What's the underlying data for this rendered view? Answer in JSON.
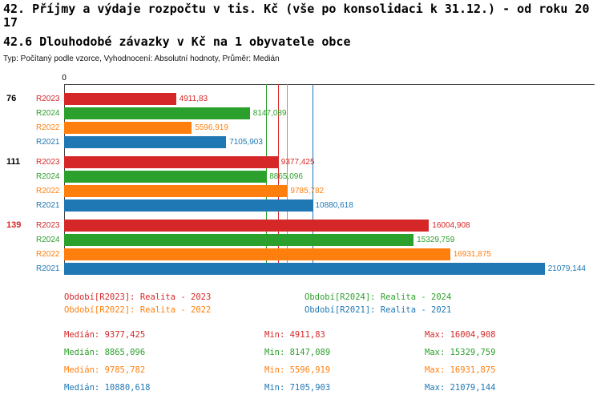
{
  "title": {
    "line1": "42. Příjmy a výdaje rozpočtu v tis. Kč (vše po konsolidaci k 31.12.) - od roku 20",
    "line2": "17",
    "subtitle": "42.6 Dlouhodobé závazky v Kč na 1 obyvatele obce",
    "meta": "Typ: Počítaný podle vzorce, Vyhodnocení: Absolutní hodnoty, Průměr: Medián"
  },
  "chart_data": {
    "type": "bar",
    "orientation": "horizontal",
    "title": "42.6 Dlouhodobé závazky v Kč na 1 obyvatele obce",
    "xlabel": "",
    "ylabel": "",
    "xlim": [
      0,
      23200
    ],
    "grid": false,
    "legend_position": "bottom",
    "axis_zero_label": "0",
    "series_colors": {
      "R2023": "#d62728",
      "R2024": "#2ca02c",
      "R2022": "#ff7f0e",
      "R2021": "#1f77b4"
    },
    "groups": [
      {
        "label": "76",
        "label_color": "#000000",
        "bars": [
          {
            "series": "R2023",
            "value": 4911.83,
            "value_label": "4911,83"
          },
          {
            "series": "R2024",
            "value": 8147.089,
            "value_label": "8147,089"
          },
          {
            "series": "R2022",
            "value": 5596.919,
            "value_label": "5596,919"
          },
          {
            "series": "R2021",
            "value": 7105.903,
            "value_label": "7105,903"
          }
        ]
      },
      {
        "label": "111",
        "label_color": "#000000",
        "bars": [
          {
            "series": "R2023",
            "value": 9377.425,
            "value_label": "9377,425"
          },
          {
            "series": "R2024",
            "value": 8865.096,
            "value_label": "8865,096"
          },
          {
            "series": "R2022",
            "value": 9785.782,
            "value_label": "9785,782"
          },
          {
            "series": "R2021",
            "value": 10880.618,
            "value_label": "10880,618"
          }
        ]
      },
      {
        "label": "139",
        "label_color": "#d62728",
        "bars": [
          {
            "series": "R2023",
            "value": 16004.908,
            "value_label": "16004,908"
          },
          {
            "series": "R2024",
            "value": 15329.759,
            "value_label": "15329,759"
          },
          {
            "series": "R2022",
            "value": 16931.875,
            "value_label": "16931,875"
          },
          {
            "series": "R2021",
            "value": 21079.144,
            "value_label": "21079,144"
          }
        ]
      }
    ],
    "median_lines": [
      {
        "series": "R2023",
        "value": 9377.425
      },
      {
        "series": "R2024",
        "value": 8865.096
      },
      {
        "series": "R2022",
        "value": 9785.782
      },
      {
        "series": "R2021",
        "value": 10880.618
      }
    ]
  },
  "legend": [
    {
      "series": "R2023",
      "text": "Období[R2023]: Realita - 2023",
      "color": "#d62728"
    },
    {
      "series": "R2024",
      "text": "Období[R2024]: Realita - 2024",
      "color": "#2ca02c"
    },
    {
      "series": "R2022",
      "text": "Období[R2022]: Realita - 2022",
      "color": "#ff7f0e"
    },
    {
      "series": "R2021",
      "text": "Období[R2021]: Realita - 2021",
      "color": "#1f77b4"
    }
  ],
  "stats": [
    {
      "series": "R2023",
      "color": "#d62728",
      "median": "Medián: 9377,425",
      "min": "Min: 4911,83",
      "max": "Max: 16004,908"
    },
    {
      "series": "R2024",
      "color": "#2ca02c",
      "median": "Medián: 8865,096",
      "min": "Min: 8147,089",
      "max": "Max: 15329,759"
    },
    {
      "series": "R2022",
      "color": "#ff7f0e",
      "median": "Medián: 9785,782",
      "min": "Min: 5596,919",
      "max": "Max: 16931,875"
    },
    {
      "series": "R2021",
      "color": "#1f77b4",
      "median": "Medián: 10880,618",
      "min": "Min: 7105,903",
      "max": "Max: 21079,144"
    }
  ]
}
